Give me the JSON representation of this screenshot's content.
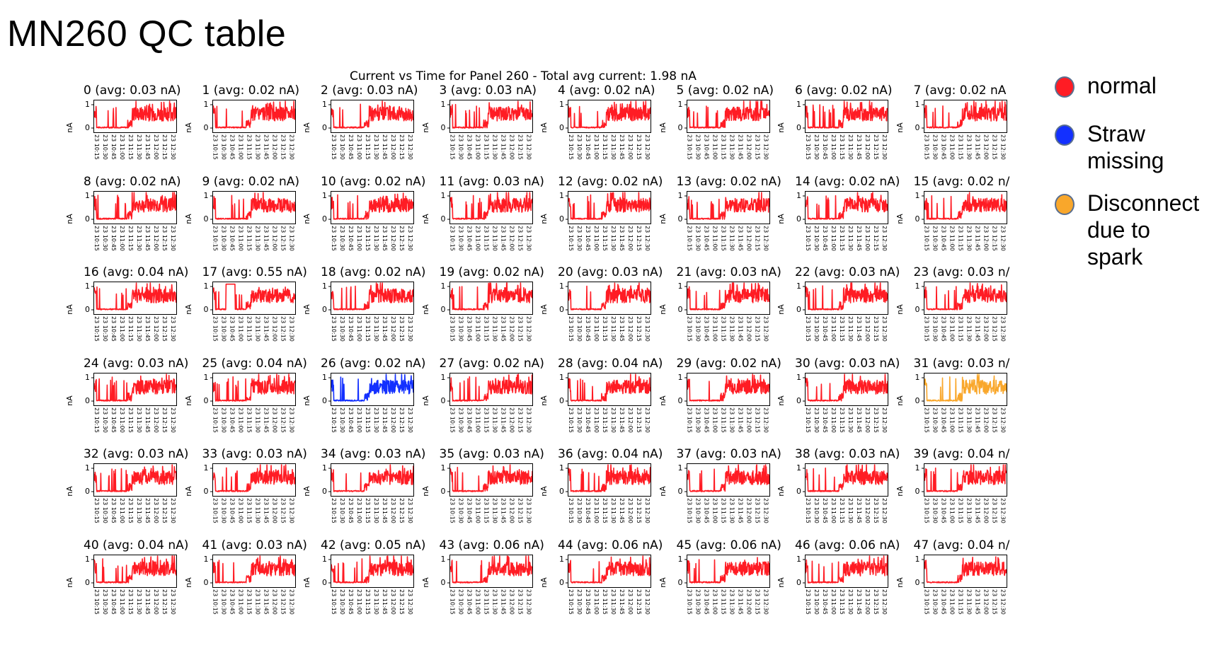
{
  "page_title": "MN260 QC table",
  "legend": [
    {
      "label": "normal",
      "color": "#ff1c24"
    },
    {
      "label": "Straw missing",
      "color": "#1330ff"
    },
    {
      "label": "Disconnect due to spark",
      "color": "#f9a72b"
    }
  ],
  "chart_data": {
    "type": "line",
    "title": "Current vs Time for Panel 260 - Total avg current: 1.98 nA",
    "ylabel": "nA",
    "ylim": [
      0,
      1
    ],
    "yticks": [
      "0",
      "1"
    ],
    "xticks": [
      "23 10:15",
      "23 10:30",
      "23 10:45",
      "23 11:00",
      "23 11:15",
      "23 11:30",
      "23 11:45",
      "23 12:00",
      "23 12:15",
      "23 12:30"
    ],
    "panels": [
      {
        "label": "0 (avg: 0.03 nA)",
        "status": "normal"
      },
      {
        "label": "1 (avg: 0.02 nA)",
        "status": "normal"
      },
      {
        "label": "2 (avg: 0.03 nA)",
        "status": "normal"
      },
      {
        "label": "3 (avg: 0.03 nA)",
        "status": "normal"
      },
      {
        "label": "4 (avg: 0.02 nA)",
        "status": "normal"
      },
      {
        "label": "5 (avg: 0.02 nA)",
        "status": "normal"
      },
      {
        "label": "6 (avg: 0.02 nA)",
        "status": "normal"
      },
      {
        "label": "7 (avg: 0.02 nA",
        "status": "normal"
      },
      {
        "label": "8 (avg: 0.02 nA)",
        "status": "normal"
      },
      {
        "label": "9 (avg: 0.02 nA)",
        "status": "normal"
      },
      {
        "label": "10 (avg: 0.02 nA)",
        "status": "normal"
      },
      {
        "label": "11 (avg: 0.03 nA)",
        "status": "normal"
      },
      {
        "label": "12 (avg: 0.02 nA)",
        "status": "normal"
      },
      {
        "label": "13 (avg: 0.02 nA)",
        "status": "normal"
      },
      {
        "label": "14 (avg: 0.02 nA)",
        "status": "normal"
      },
      {
        "label": "15 (avg: 0.02 n/",
        "status": "normal"
      },
      {
        "label": "16 (avg: 0.04 nA)",
        "status": "normal"
      },
      {
        "label": "17 (avg: 0.55 nA)",
        "status": "normal"
      },
      {
        "label": "18 (avg: 0.02 nA)",
        "status": "normal"
      },
      {
        "label": "19 (avg: 0.02 nA)",
        "status": "normal"
      },
      {
        "label": "20 (avg: 0.03 nA)",
        "status": "normal"
      },
      {
        "label": "21 (avg: 0.03 nA)",
        "status": "normal"
      },
      {
        "label": "22 (avg: 0.03 nA)",
        "status": "normal"
      },
      {
        "label": "23 (avg: 0.03 n/",
        "status": "normal"
      },
      {
        "label": "24 (avg: 0.03 nA)",
        "status": "normal"
      },
      {
        "label": "25 (avg: 0.04 nA)",
        "status": "normal"
      },
      {
        "label": "26 (avg: 0.02 nA)",
        "status": "straw_missing"
      },
      {
        "label": "27 (avg: 0.02 nA)",
        "status": "normal"
      },
      {
        "label": "28 (avg: 0.04 nA)",
        "status": "normal"
      },
      {
        "label": "29 (avg: 0.02 nA)",
        "status": "normal"
      },
      {
        "label": "30 (avg: 0.03 nA)",
        "status": "normal"
      },
      {
        "label": "31 (avg: 0.03 n/",
        "status": "spark_disconnect"
      },
      {
        "label": "32 (avg: 0.03 nA)",
        "status": "normal"
      },
      {
        "label": "33 (avg: 0.03 nA)",
        "status": "normal"
      },
      {
        "label": "34 (avg: 0.03 nA)",
        "status": "normal"
      },
      {
        "label": "35 (avg: 0.03 nA)",
        "status": "normal"
      },
      {
        "label": "36 (avg: 0.04 nA)",
        "status": "normal"
      },
      {
        "label": "37 (avg: 0.03 nA)",
        "status": "normal"
      },
      {
        "label": "38 (avg: 0.03 nA)",
        "status": "normal"
      },
      {
        "label": "39 (avg: 0.04 n/",
        "status": "normal"
      },
      {
        "label": "40 (avg: 0.04 nA)",
        "status": "normal"
      },
      {
        "label": "41 (avg: 0.03 nA)",
        "status": "normal"
      },
      {
        "label": "42 (avg: 0.05 nA)",
        "status": "normal"
      },
      {
        "label": "43 (avg: 0.06 nA)",
        "status": "normal"
      },
      {
        "label": "44 (avg: 0.06 nA)",
        "status": "normal"
      },
      {
        "label": "45 (avg: 0.06 nA)",
        "status": "normal"
      },
      {
        "label": "46 (avg: 0.06 nA)",
        "status": "normal"
      },
      {
        "label": "47 (avg: 0.04 n/",
        "status": "normal"
      }
    ]
  }
}
